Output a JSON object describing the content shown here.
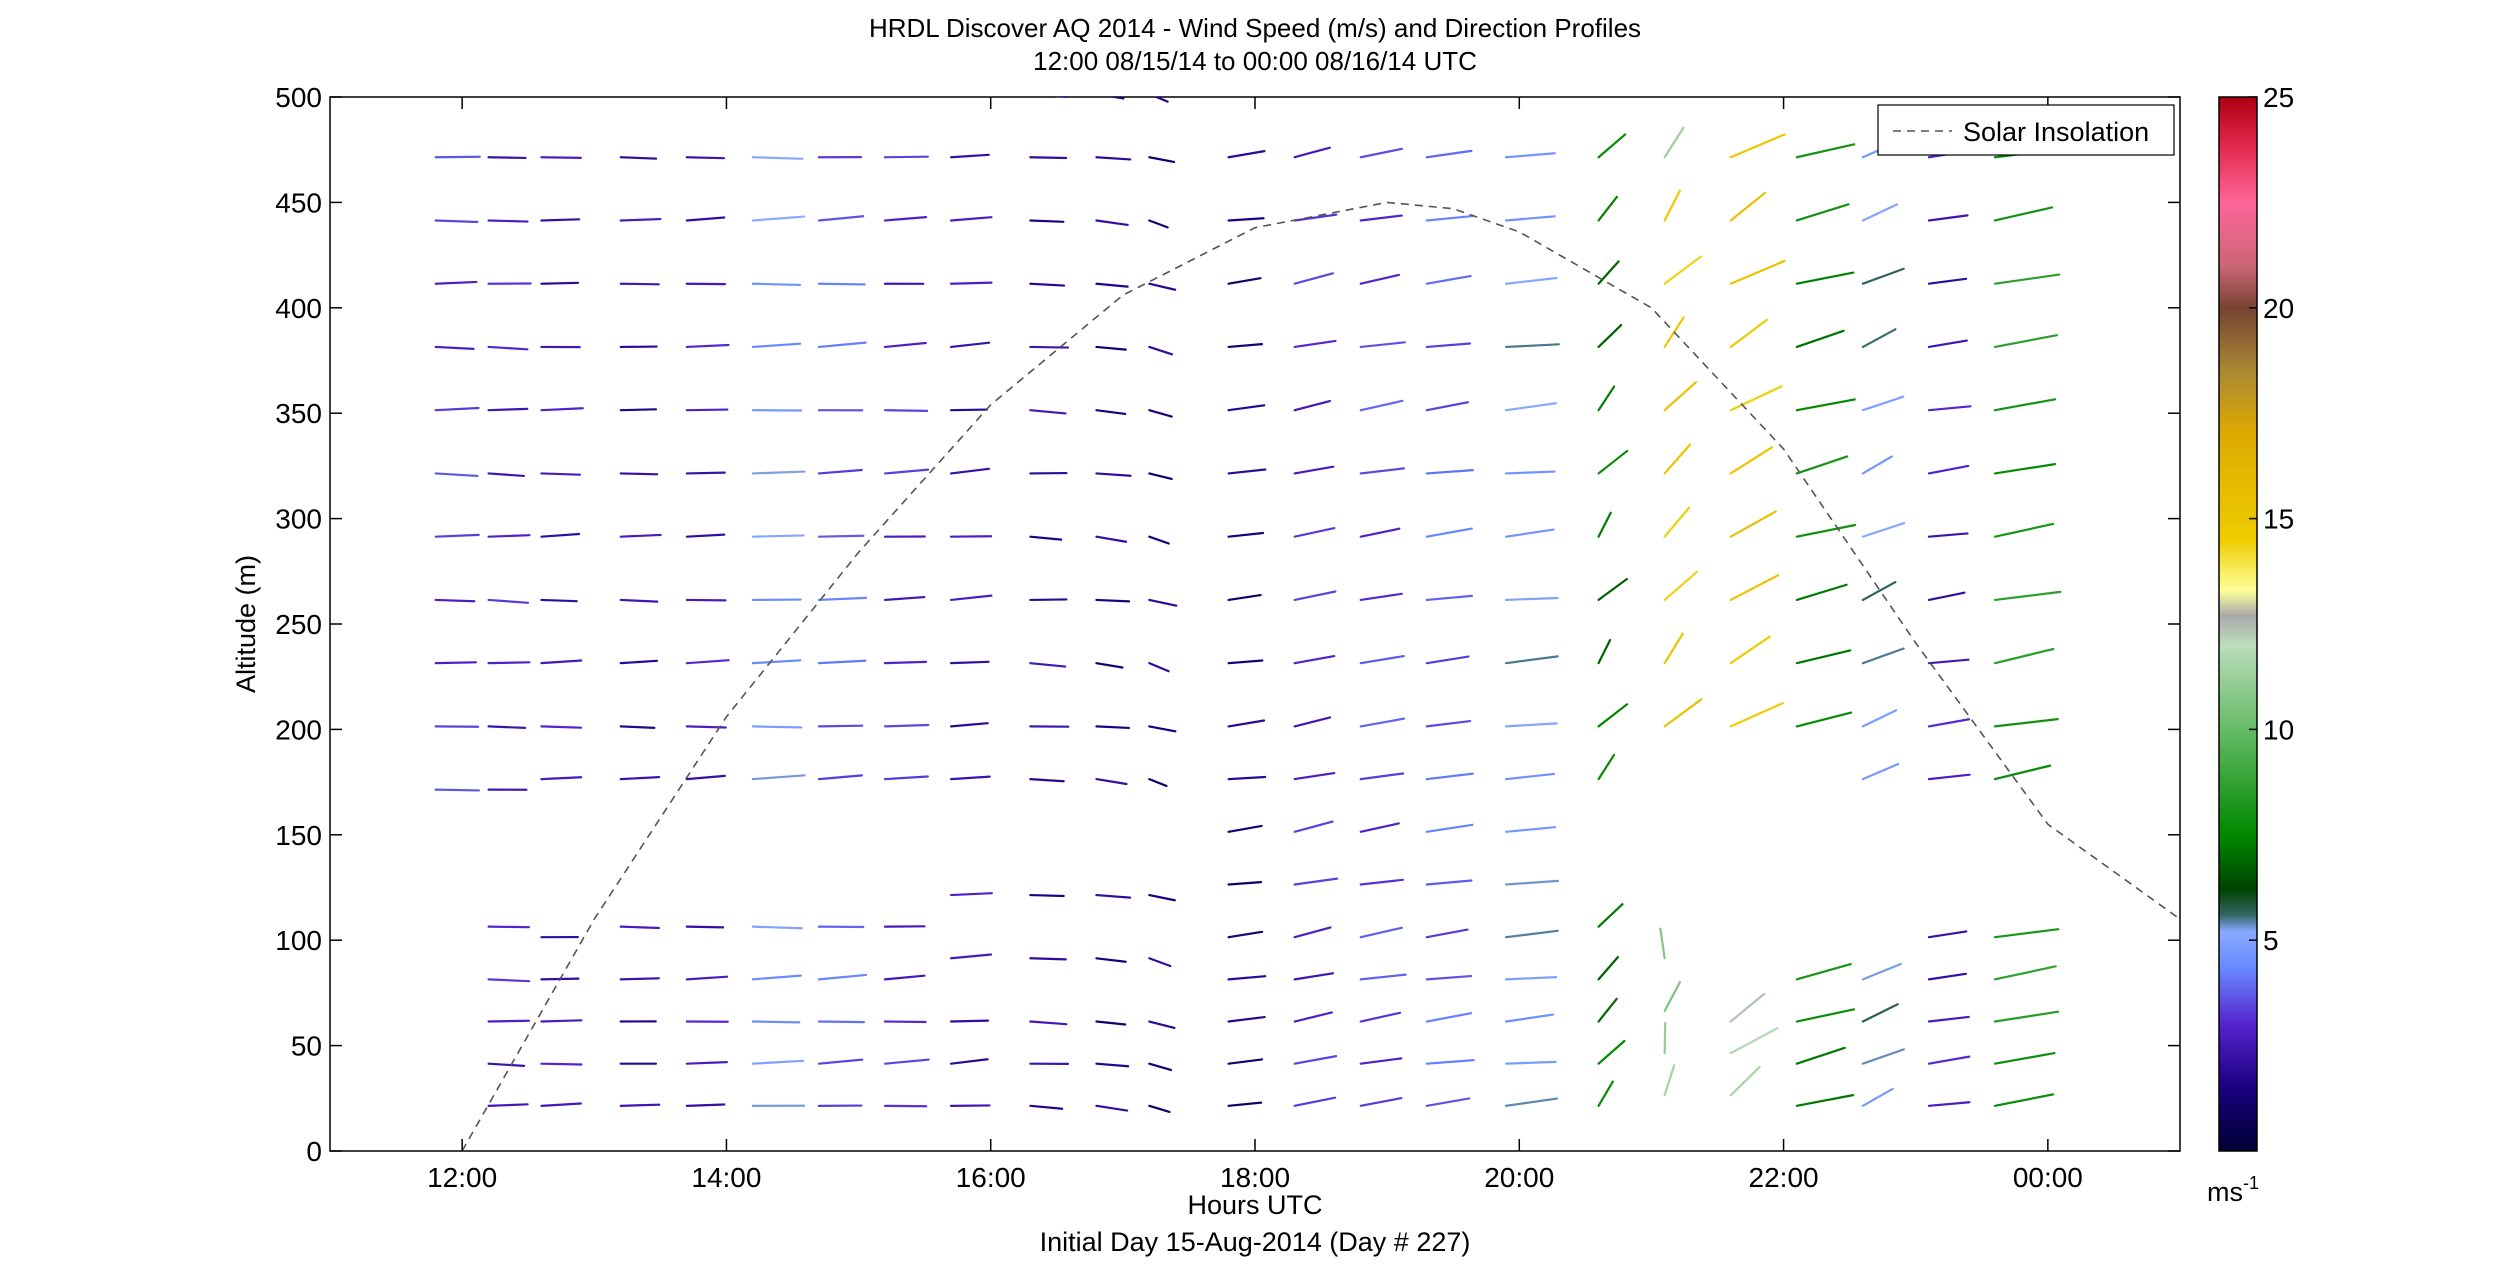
{
  "chart_data": {
    "type": "scatter",
    "subtype": "wind-barb-profile",
    "title": "HRDL Discover AQ 2014 - Wind Speed (m/s) and Direction Profiles",
    "subtitle": "12:00 08/15/14 to 00:00 08/16/14  UTC",
    "xlabel": "Hours UTC",
    "xlabel2": "Initial Day 15-Aug-2014 (Day # 227)",
    "ylabel": "Altitude (m)",
    "xlim_hours": [
      11.0,
      25.0
    ],
    "ylim": [
      0,
      500
    ],
    "x_ticks": [
      12,
      14,
      16,
      18,
      20,
      22,
      24
    ],
    "x_tick_labels": [
      "12:00",
      "14:00",
      "16:00",
      "18:00",
      "20:00",
      "22:00",
      "00:00"
    ],
    "y_ticks": [
      0,
      50,
      100,
      150,
      200,
      250,
      300,
      350,
      400,
      450,
      500
    ],
    "y_tick_labels": [
      "0",
      "50",
      "100",
      "150",
      "200",
      "250",
      "300",
      "350",
      "400",
      "450",
      "500"
    ],
    "colorbar": {
      "range": [
        0,
        25
      ],
      "ticks": [
        5,
        10,
        15,
        20,
        25
      ],
      "tick_labels": [
        "5",
        "10",
        "15",
        "20",
        "25"
      ],
      "unit": "ms",
      "unit_exp": "-1",
      "stops": [
        {
          "v": 0,
          "c": "#000033"
        },
        {
          "v": 1.5,
          "c": "#1a0080"
        },
        {
          "v": 3,
          "c": "#5522cc"
        },
        {
          "v": 4.3,
          "c": "#6688ff"
        },
        {
          "v": 5.2,
          "c": "#88aaff"
        },
        {
          "v": 5.6,
          "c": "#336666"
        },
        {
          "v": 6.2,
          "c": "#004400"
        },
        {
          "v": 7.5,
          "c": "#008800"
        },
        {
          "v": 10,
          "c": "#66bb66"
        },
        {
          "v": 12,
          "c": "#bbddbb"
        },
        {
          "v": 12.7,
          "c": "#aaaaaa"
        },
        {
          "v": 13.3,
          "c": "#ffff99"
        },
        {
          "v": 14.5,
          "c": "#eecc00"
        },
        {
          "v": 17,
          "c": "#ddaa00"
        },
        {
          "v": 18.5,
          "c": "#aa8833"
        },
        {
          "v": 20,
          "c": "#774433"
        },
        {
          "v": 21,
          "c": "#cc6677"
        },
        {
          "v": 22.5,
          "c": "#ff6699"
        },
        {
          "v": 24,
          "c": "#dd2244"
        },
        {
          "v": 25,
          "c": "#aa0011"
        }
      ]
    },
    "legend": {
      "label": "Solar Insolation",
      "placement": "top-right",
      "style": "dashed",
      "color": "#555555"
    },
    "solar_insolation": {
      "hours": [
        12.0,
        13.0,
        14.0,
        15.0,
        16.0,
        17.0,
        18.0,
        19.0,
        19.5,
        20.0,
        21.0,
        22.0,
        23.0,
        24.0,
        25.0
      ],
      "values": [
        0,
        110,
        206,
        284,
        354,
        406,
        438,
        450,
        447,
        436,
        400,
        333,
        241,
        155,
        110
      ]
    },
    "columns": [
      {
        "t": 11.8,
        "speed": 3.2,
        "dir": 78,
        "alts": [
          500,
          470,
          440,
          410,
          380,
          350,
          320,
          290,
          260,
          230,
          200,
          170
        ],
        "dir_top_adj": 0
      },
      {
        "t": 12.2,
        "speed": 2.8,
        "dir": 75,
        "alts": [
          500,
          470,
          440,
          410,
          380,
          350,
          320,
          290,
          260,
          230,
          200,
          170,
          105,
          80,
          60,
          40,
          20
        ]
      },
      {
        "t": 12.6,
        "speed": 2.5,
        "dir": 80,
        "alts": [
          500,
          470,
          440,
          410,
          380,
          350,
          320,
          290,
          260,
          230,
          200,
          175,
          100,
          80,
          60,
          40,
          20
        ]
      },
      {
        "t": 13.2,
        "speed": 2.2,
        "dir": 78,
        "alts": [
          500,
          470,
          440,
          410,
          380,
          350,
          320,
          290,
          260,
          230,
          200,
          175,
          105,
          80,
          60,
          40,
          20
        ]
      },
      {
        "t": 13.7,
        "speed": 2.6,
        "dir": 82,
        "alts": [
          500,
          470,
          440,
          410,
          380,
          350,
          320,
          290,
          260,
          230,
          200,
          175,
          105,
          80,
          60,
          40,
          20
        ]
      },
      {
        "t": 14.2,
        "speed": 4.8,
        "dir": 84,
        "alts": [
          500,
          470,
          440,
          410,
          380,
          350,
          320,
          290,
          260,
          230,
          200,
          175,
          105,
          80,
          60,
          40,
          20
        ]
      },
      {
        "t": 14.7,
        "speed": 3.8,
        "dir": 86,
        "alts": [
          500,
          470,
          440,
          410,
          380,
          350,
          320,
          290,
          260,
          230,
          200,
          175,
          105,
          80,
          60,
          40,
          20
        ]
      },
      {
        "t": 15.2,
        "speed": 3.0,
        "dir": 85,
        "alts": [
          500,
          470,
          440,
          410,
          380,
          350,
          320,
          290,
          260,
          230,
          200,
          175,
          105,
          80,
          60,
          40,
          20
        ]
      },
      {
        "t": 15.7,
        "speed": 2.4,
        "dir": 88,
        "alts": [
          500,
          470,
          440,
          410,
          380,
          350,
          320,
          290,
          260,
          230,
          200,
          175,
          120,
          90,
          60,
          40,
          20
        ]
      },
      {
        "t": 16.3,
        "speed": 2.1,
        "dir": 70,
        "alts": [
          500,
          470,
          440,
          410,
          380,
          350,
          320,
          290,
          260,
          230,
          200,
          175,
          120,
          90,
          60,
          40,
          20
        ]
      },
      {
        "t": 16.8,
        "speed": 1.7,
        "dir": 60,
        "alts": [
          500,
          470,
          440,
          410,
          380,
          350,
          320,
          290,
          260,
          230,
          200,
          175,
          120,
          90,
          60,
          40,
          20
        ]
      },
      {
        "t": 17.2,
        "speed": 1.6,
        "dir": 40,
        "alts": [
          500,
          470,
          440,
          410,
          380,
          350,
          320,
          290,
          260,
          230,
          200,
          175,
          120,
          90,
          60,
          40,
          20
        ]
      },
      {
        "t": 17.8,
        "speed": 1.5,
        "dir": 95,
        "alts": [
          500,
          470,
          440,
          410,
          380,
          350,
          320,
          290,
          260,
          230,
          200,
          175,
          150,
          125,
          100,
          80,
          60,
          40,
          20
        ]
      },
      {
        "t": 18.3,
        "speed": 3.0,
        "dir": 110,
        "alts": [
          500,
          470,
          440,
          410,
          380,
          350,
          320,
          290,
          260,
          230,
          200,
          175,
          150,
          125,
          100,
          80,
          60,
          40,
          20
        ]
      },
      {
        "t": 18.8,
        "speed": 3.4,
        "dir": 105,
        "alts": [
          500,
          470,
          440,
          410,
          380,
          350,
          320,
          290,
          260,
          230,
          200,
          175,
          150,
          125,
          100,
          80,
          60,
          40,
          20
        ]
      },
      {
        "t": 19.3,
        "speed": 3.8,
        "dir": 100,
        "alts": [
          500,
          470,
          440,
          410,
          380,
          350,
          320,
          290,
          260,
          230,
          200,
          175,
          150,
          125,
          100,
          80,
          60,
          40,
          20
        ]
      },
      {
        "t": 19.9,
        "speed": 5.0,
        "dir": 95,
        "alts": [
          500,
          470,
          440,
          410,
          380,
          350,
          320,
          290,
          260,
          230,
          200,
          175,
          150,
          125,
          100,
          80,
          60,
          40,
          20
        ]
      },
      {
        "t": 20.6,
        "speed": 7.2,
        "dir": 160,
        "alts": [
          500,
          470,
          440,
          410,
          380,
          350,
          320,
          290,
          260,
          230,
          200,
          175,
          105,
          80,
          60,
          40,
          20
        ]
      },
      {
        "t": 21.1,
        "speed": 14.8,
        "dir": 160,
        "alts": [
          440,
          410,
          380,
          350,
          320,
          290,
          260,
          230,
          200
        ]
      },
      {
        "t": 21.1,
        "speed": 11.0,
        "dir": 175,
        "alts": [
          500,
          470,
          90,
          65,
          45,
          25
        ]
      },
      {
        "t": 21.6,
        "speed": 14.9,
        "dir": 145,
        "alts": [
          500,
          470,
          440,
          410,
          380,
          350,
          320,
          290,
          260,
          230,
          200
        ]
      },
      {
        "t": 21.6,
        "speed": 12.0,
        "dir": 150,
        "alts": [
          60,
          45,
          25
        ]
      },
      {
        "t": 22.1,
        "speed": 7.6,
        "dir": 120,
        "alts": [
          500,
          470,
          440,
          410,
          380,
          350,
          320,
          290,
          260,
          230,
          200,
          80,
          60,
          40,
          20
        ]
      },
      {
        "t": 22.6,
        "speed": 5.2,
        "dir": 135,
        "alts": [
          500,
          470,
          440,
          410,
          380,
          350,
          320,
          290,
          260,
          230,
          200,
          175,
          80,
          60,
          40,
          20
        ]
      },
      {
        "t": 23.1,
        "speed": 2.6,
        "dir": 100,
        "alts": [
          500,
          470,
          440,
          410,
          380,
          350,
          320,
          290,
          260,
          230,
          200,
          175,
          100,
          80,
          60,
          40,
          20
        ]
      },
      {
        "t": 23.6,
        "speed": 8.2,
        "dir": 110,
        "alts": [
          470,
          440,
          410,
          380,
          350,
          320,
          290,
          260,
          230,
          200,
          175,
          100,
          80,
          60,
          40,
          20
        ]
      }
    ]
  }
}
